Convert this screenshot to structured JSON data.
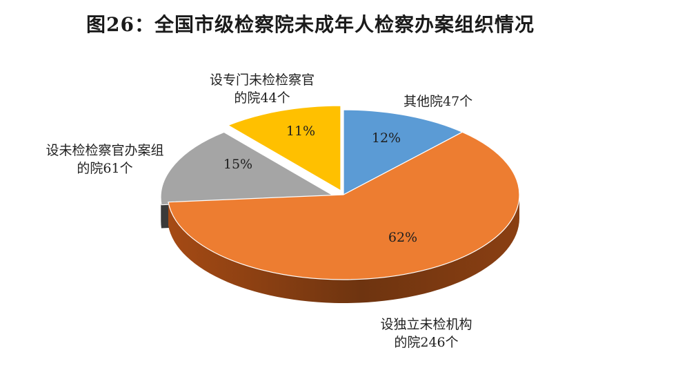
{
  "chart_data": {
    "type": "pie",
    "title": "图26：全国市级检察院未成年人检察办案组织情况",
    "slices": [
      {
        "name": "其他院47个",
        "lines": [
          "其他院47个"
        ],
        "value": 47,
        "percent": "12%",
        "color": "#5b9bd5"
      },
      {
        "name": "设独立未检机构的院246个",
        "lines": [
          "设独立未检机构",
          "的院246个"
        ],
        "value": 246,
        "percent": "62%",
        "color": "#ed7d31"
      },
      {
        "name": "设未检检察官办案组的院61个",
        "lines": [
          "设未检检察官办案组",
          "的院61个"
        ],
        "value": 61,
        "percent": "15%",
        "color": "#a5a5a5"
      },
      {
        "name": "设专门未检检察官的院44个",
        "lines": [
          "设专门未检检察官",
          "的院44个"
        ],
        "value": 44,
        "percent": "11%",
        "color": "#ffc000"
      }
    ],
    "legend": "none",
    "style": "3d-exploded"
  }
}
